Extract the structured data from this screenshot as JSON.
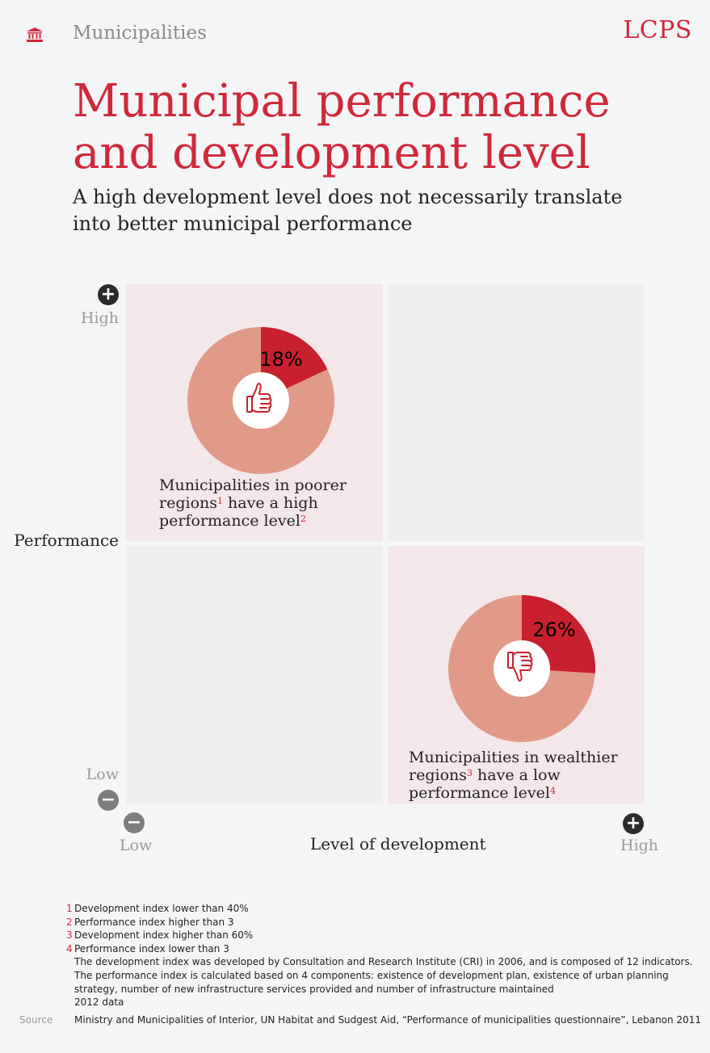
{
  "header": {
    "section": "Municipalities",
    "brand": "LCPS",
    "title": "Municipal performance and development level",
    "subtitle": "A high development level does not necessarily translate into better municipal performance"
  },
  "icons": {
    "section": "building-icon",
    "up": "thumbs-up-icon",
    "down": "thumbs-down-icon",
    "plus": "plus-icon",
    "minus": "minus-icon"
  },
  "colors": {
    "accent": "#d0283a",
    "pie_rest": "#e29a88",
    "quadrant_highlight": "#f3e7ea",
    "quadrant_plain": "#eeeef1"
  },
  "chart_data": {
    "type": "pie",
    "xlabel": "Level of development",
    "ylabel": "Performance",
    "x_ticks": {
      "low": "Low",
      "high": "High"
    },
    "y_ticks": {
      "low": "Low",
      "high": "High"
    },
    "charts": [
      {
        "quadrant": "top-left",
        "percent": 18,
        "label": "18%",
        "caption": {
          "l1": "Municipalities in poorer",
          "l2a": "regions",
          "n1": "1",
          "l2b": " have a high",
          "l3": "performance level",
          "n2": "2"
        }
      },
      {
        "quadrant": "bottom-right",
        "percent": 26,
        "label": "26%",
        "caption": {
          "l1": "Municipalities in wealthier",
          "l2a": "regions",
          "n1": "3",
          "l2b": " have a low",
          "l3": "performance level",
          "n2": "4"
        }
      }
    ]
  },
  "notes": {
    "numbered": [
      {
        "num": "1",
        "text": "Development index lower than 40%"
      },
      {
        "num": "2",
        "text": "Performance index higher than 3"
      },
      {
        "num": "3",
        "text": "Development index higher than 60%"
      },
      {
        "num": "4",
        "text": "Performance index lower than 3"
      }
    ],
    "plain": [
      "The development index was developed by Consultation and Research Institute (CRI) in 2006, and is composed of 12 indicators.",
      "The performance index is calculated based on 4 components: existence of development plan, existence of urban planning",
      "strategy, number of new infrastructure services provided and number of infrastructure maintained",
      "2012 data"
    ],
    "source_label": "Source",
    "source_text": "Ministry and Municipalities of Interior, UN Habitat and Sudgest Aid, “Performance of municipalities questionnaire”, Lebanon 2011"
  }
}
